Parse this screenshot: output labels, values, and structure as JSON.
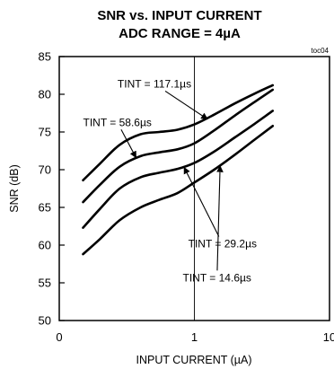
{
  "chart_data": {
    "type": "line",
    "title": "SNR vs. INPUT CURRENT",
    "subtitle": "ADC RANGE = 4µA",
    "tag": "toc04",
    "xlabel": "INPUT CURRENT (µA)",
    "ylabel": "SNR (dB)",
    "x_scale": "log",
    "xlim": [
      0.1,
      10
    ],
    "ylim": [
      50,
      85
    ],
    "x_ticks": [
      {
        "value": 0.1,
        "label": "0"
      },
      {
        "value": 1,
        "label": "1"
      },
      {
        "value": 10,
        "label": "10"
      }
    ],
    "y_ticks": [
      50,
      55,
      60,
      65,
      70,
      75,
      80,
      85
    ],
    "grid": {
      "x": [
        1
      ],
      "y": []
    },
    "series": [
      {
        "name": "TINT = 117.1µs",
        "x": [
          0.15,
          0.2,
          0.28,
          0.4,
          0.55,
          0.75,
          1.0,
          1.4,
          2.0,
          2.8,
          3.8
        ],
        "y": [
          68.6,
          70.8,
          73.3,
          74.7,
          75.0,
          75.3,
          76.0,
          77.3,
          78.8,
          80.1,
          81.2
        ]
      },
      {
        "name": "TINT = 58.6µs",
        "x": [
          0.15,
          0.2,
          0.28,
          0.4,
          0.55,
          0.75,
          1.0,
          1.4,
          2.0,
          2.8,
          3.8
        ],
        "y": [
          65.7,
          68.0,
          70.4,
          71.8,
          72.3,
          72.7,
          73.5,
          75.2,
          77.2,
          79.0,
          80.6
        ]
      },
      {
        "name": "TINT = 29.2µs",
        "x": [
          0.15,
          0.2,
          0.28,
          0.4,
          0.55,
          0.75,
          1.0,
          1.4,
          2.0,
          2.8,
          3.8
        ],
        "y": [
          62.3,
          64.8,
          67.5,
          69.0,
          69.6,
          70.1,
          70.9,
          72.4,
          74.3,
          76.1,
          77.8
        ]
      },
      {
        "name": "TINT = 14.6µs",
        "x": [
          0.15,
          0.2,
          0.28,
          0.4,
          0.55,
          0.75,
          1.0,
          1.4,
          2.0,
          2.8,
          3.8
        ],
        "y": [
          58.8,
          60.8,
          63.3,
          65.0,
          66.0,
          66.9,
          68.3,
          70.0,
          72.0,
          74.0,
          75.8
        ]
      }
    ],
    "annotations": [
      {
        "text": "TINT = 117.1µs",
        "series": 0,
        "label_at": [
          0.27,
          80.9
        ],
        "points_to": [
          1.25,
          76.7
        ]
      },
      {
        "text": "TINT = 58.6µs",
        "series": 1,
        "label_at": [
          0.15,
          75.8
        ],
        "points_to": [
          0.37,
          71.6
        ]
      },
      {
        "text": "TINT = 29.2µs",
        "series": 2,
        "label_at": [
          0.9,
          59.7
        ],
        "points_to": [
          0.84,
          70.3
        ]
      },
      {
        "text": "TINT = 14.6µs",
        "series": 3,
        "label_at": [
          0.82,
          55.2
        ],
        "points_to": [
          1.55,
          70.5
        ]
      }
    ]
  }
}
